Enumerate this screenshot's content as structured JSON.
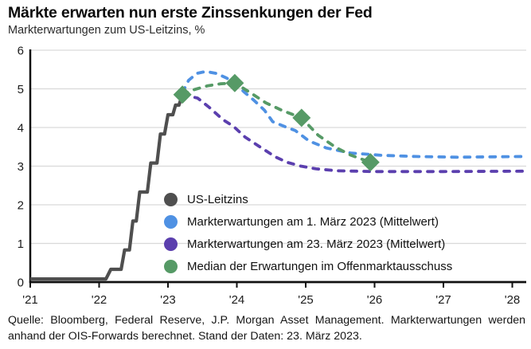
{
  "header": {
    "title": "Märkte erwarten nun erste Zinssenkungen der Fed",
    "subtitle": "Markterwartungen zum US-Leitzins, %"
  },
  "footer": {
    "source": "Quelle: Bloomberg, Federal Reserve, J.P. Morgan Asset Management. Markterwartungen werden anhand der OIS-Forwards berechnet. Stand der Daten: 23. März 2023."
  },
  "colors": {
    "us_line": "#4f4f4f",
    "blue_line": "#4f91e3",
    "purple_line": "#5b3fae",
    "green_line": "#569a66",
    "grid": "#d9d9d9",
    "axis": "#111111",
    "text": "#1c1c1c"
  },
  "legend": {
    "items": [
      {
        "label": "US-Leitzins",
        "color": "#4f4f4f"
      },
      {
        "label": "Markterwartungen am 1. März 2023 (Mittelwert)",
        "color": "#4f91e3"
      },
      {
        "label": "Markterwartungen am 23. März 2023 (Mittelwert)",
        "color": "#5b3fae"
      },
      {
        "label": "Median der Erwartungen im Offenmarktausschuss",
        "color": "#569a66"
      }
    ]
  },
  "chart_data": {
    "type": "line",
    "title": "Märkte erwarten nun erste Zinssenkungen der Fed",
    "ylabel": "Markterwartungen zum US-Leitzins, %",
    "xlabel": "",
    "xlim": [
      2021,
      2028.2
    ],
    "ylim": [
      0,
      6
    ],
    "grid": "horizontal",
    "legend_position": "inside-bottom-left",
    "yticks": [
      0,
      1,
      2,
      3,
      4,
      5,
      6
    ],
    "xticks": {
      "values": [
        2021,
        2022,
        2023,
        2024,
        2025,
        2026,
        2027,
        2028
      ],
      "labels": [
        "'21",
        "'22",
        "'23",
        "'24",
        "'25",
        "'26",
        "'27",
        "'28"
      ]
    },
    "series": [
      {
        "name": "US-Leitzins",
        "color": "#4f4f4f",
        "style": "solid",
        "width": 4.2,
        "points": [
          [
            2021.0,
            0.08
          ],
          [
            2022.1,
            0.08
          ],
          [
            2022.17,
            0.33
          ],
          [
            2022.32,
            0.33
          ],
          [
            2022.37,
            0.83
          ],
          [
            2022.44,
            0.83
          ],
          [
            2022.49,
            1.58
          ],
          [
            2022.54,
            1.58
          ],
          [
            2022.59,
            2.33
          ],
          [
            2022.7,
            2.33
          ],
          [
            2022.75,
            3.08
          ],
          [
            2022.84,
            3.08
          ],
          [
            2022.89,
            3.83
          ],
          [
            2022.95,
            3.83
          ],
          [
            2023.0,
            4.33
          ],
          [
            2023.07,
            4.33
          ],
          [
            2023.11,
            4.58
          ],
          [
            2023.16,
            4.58
          ],
          [
            2023.21,
            4.85
          ]
        ]
      },
      {
        "name": "Markterwartungen am 1. März 2023 (Mittelwert)",
        "color": "#4f91e3",
        "style": "dashed",
        "width": 3.8,
        "points": [
          [
            2023.21,
            4.9
          ],
          [
            2023.3,
            5.22
          ],
          [
            2023.42,
            5.4
          ],
          [
            2023.55,
            5.45
          ],
          [
            2023.7,
            5.4
          ],
          [
            2023.85,
            5.28
          ],
          [
            2023.97,
            5.15
          ],
          [
            2024.1,
            4.93
          ],
          [
            2024.25,
            4.7
          ],
          [
            2024.4,
            4.45
          ],
          [
            2024.52,
            4.15
          ],
          [
            2024.7,
            4.02
          ],
          [
            2024.85,
            3.92
          ],
          [
            2025.05,
            3.65
          ],
          [
            2025.3,
            3.47
          ],
          [
            2025.65,
            3.34
          ],
          [
            2026.1,
            3.28
          ],
          [
            2026.6,
            3.25
          ],
          [
            2027.2,
            3.23
          ],
          [
            2028.18,
            3.25
          ]
        ]
      },
      {
        "name": "Markterwartungen am 23. März 2023 (Mittelwert)",
        "color": "#5b3fae",
        "style": "dashed",
        "width": 3.8,
        "points": [
          [
            2023.21,
            4.85
          ],
          [
            2023.43,
            4.76
          ],
          [
            2023.6,
            4.52
          ],
          [
            2023.8,
            4.2
          ],
          [
            2023.95,
            4.03
          ],
          [
            2024.12,
            3.75
          ],
          [
            2024.35,
            3.48
          ],
          [
            2024.56,
            3.24
          ],
          [
            2024.73,
            3.1
          ],
          [
            2024.93,
            3.0
          ],
          [
            2025.15,
            2.93
          ],
          [
            2025.45,
            2.88
          ],
          [
            2026.0,
            2.86
          ],
          [
            2027.0,
            2.86
          ],
          [
            2028.18,
            2.87
          ]
        ]
      },
      {
        "name": "Median der Erwartungen im Offenmarktausschuss",
        "color": "#569a66",
        "style": "dashed",
        "width": 3.8,
        "points": [
          [
            2023.21,
            4.85
          ],
          [
            2023.38,
            4.98
          ],
          [
            2023.58,
            5.08
          ],
          [
            2023.76,
            5.13
          ],
          [
            2023.97,
            5.15
          ],
          [
            2024.18,
            4.92
          ],
          [
            2024.42,
            4.64
          ],
          [
            2024.66,
            4.44
          ],
          [
            2024.94,
            4.25
          ],
          [
            2025.18,
            3.8
          ],
          [
            2025.44,
            3.48
          ],
          [
            2025.66,
            3.28
          ],
          [
            2025.94,
            3.1
          ]
        ],
        "marker": "diamond",
        "marker_points": [
          [
            2023.21,
            4.85
          ],
          [
            2023.97,
            5.15
          ],
          [
            2024.94,
            4.25
          ],
          [
            2025.94,
            3.1
          ]
        ]
      }
    ]
  }
}
